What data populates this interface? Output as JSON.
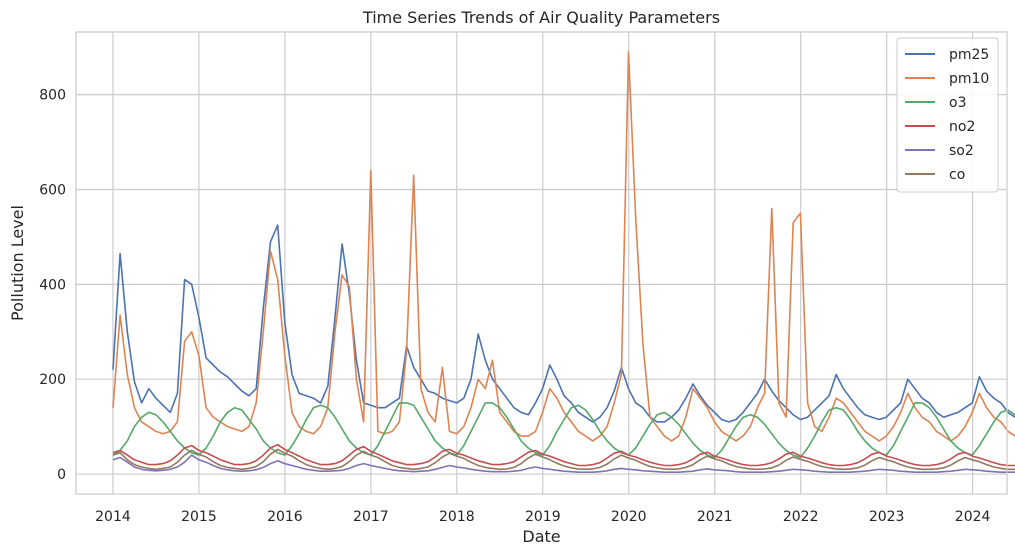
{
  "chart_data": {
    "type": "line",
    "title": "Time Series Trends of Air Quality Parameters",
    "xlabel": "Date",
    "ylabel": "Pollution Level",
    "xlim": [
      2013.57,
      2024.4
    ],
    "ylim": [
      -42,
      932
    ],
    "x_ticks": [
      2014,
      2015,
      2016,
      2017,
      2018,
      2019,
      2020,
      2021,
      2022,
      2023,
      2024
    ],
    "x_tick_labels": [
      "2014",
      "2015",
      "2016",
      "2017",
      "2018",
      "2019",
      "2020",
      "2021",
      "2022",
      "2023",
      "2024"
    ],
    "y_ticks": [
      0,
      200,
      400,
      600,
      800
    ],
    "y_tick_labels": [
      "0",
      "200",
      "400",
      "600",
      "800"
    ],
    "grid": true,
    "legend_position": "top-right",
    "x_step": 0.0833,
    "series": [
      {
        "name": "pm25",
        "color": "#4c72b0",
        "x_start": 2014.0,
        "values": [
          220,
          465,
          300,
          195,
          150,
          180,
          160,
          145,
          130,
          170,
          410,
          400,
          330,
          245,
          230,
          215,
          205,
          190,
          175,
          165,
          180,
          350,
          490,
          525,
          320,
          210,
          170,
          165,
          160,
          150,
          185,
          330,
          485,
          380,
          240,
          150,
          145,
          140,
          140,
          150,
          160,
          270,
          225,
          200,
          175,
          170,
          160,
          155,
          150,
          160,
          200,
          295,
          240,
          200,
          180,
          160,
          140,
          130,
          125,
          150,
          180,
          230,
          200,
          165,
          150,
          130,
          120,
          110,
          120,
          140,
          175,
          225,
          180,
          150,
          140,
          120,
          110,
          110,
          120,
          135,
          160,
          190,
          165,
          145,
          130,
          115,
          110,
          115,
          130,
          150,
          170,
          200,
          175,
          155,
          140,
          125,
          115,
          120,
          135,
          150,
          165,
          210,
          180,
          160,
          140,
          125,
          120,
          115,
          120,
          135,
          150,
          200,
          180,
          160,
          150,
          130,
          120,
          125,
          130,
          140,
          150,
          205,
          175,
          160,
          150,
          130,
          120,
          125,
          130,
          140,
          155,
          210
        ]
      },
      {
        "name": "pm10",
        "color": "#dd8452",
        "x_start": 2014.0,
        "values": [
          140,
          335,
          210,
          140,
          110,
          100,
          90,
          85,
          90,
          110,
          280,
          300,
          250,
          140,
          120,
          110,
          100,
          95,
          90,
          100,
          150,
          300,
          470,
          410,
          250,
          130,
          100,
          90,
          85,
          100,
          140,
          300,
          420,
          395,
          200,
          110,
          640,
          90,
          85,
          90,
          110,
          260,
          630,
          180,
          130,
          110,
          225,
          90,
          85,
          100,
          140,
          200,
          180,
          240,
          130,
          110,
          90,
          80,
          80,
          90,
          130,
          180,
          160,
          130,
          110,
          90,
          80,
          70,
          80,
          100,
          150,
          210,
          890,
          540,
          275,
          120,
          100,
          80,
          70,
          80,
          120,
          180,
          160,
          140,
          110,
          90,
          80,
          70,
          80,
          100,
          140,
          170,
          560,
          150,
          120,
          530,
          550,
          150,
          100,
          90,
          120,
          160,
          150,
          130,
          110,
          90,
          80,
          70,
          80,
          100,
          130,
          170,
          140,
          120,
          110,
          90,
          80,
          70,
          80,
          100,
          130,
          170,
          140,
          120,
          110,
          90,
          80,
          70,
          80,
          100,
          130,
          150
        ]
      },
      {
        "name": "o3",
        "color": "#55a868",
        "x_start": 2014.0,
        "values": [
          40,
          50,
          70,
          100,
          120,
          130,
          125,
          110,
          90,
          70,
          55,
          45,
          40,
          55,
          80,
          110,
          130,
          140,
          135,
          115,
          95,
          70,
          55,
          45,
          40,
          60,
          85,
          115,
          140,
          145,
          140,
          120,
          95,
          70,
          55,
          45,
          40,
          60,
          90,
          120,
          150,
          150,
          145,
          120,
          95,
          70,
          55,
          45,
          40,
          60,
          90,
          120,
          150,
          150,
          140,
          120,
          95,
          70,
          55,
          45,
          40,
          60,
          90,
          115,
          140,
          145,
          135,
          115,
          90,
          70,
          55,
          45,
          40,
          55,
          80,
          105,
          125,
          130,
          120,
          105,
          85,
          65,
          50,
          40,
          35,
          50,
          75,
          100,
          120,
          125,
          120,
          105,
          85,
          65,
          50,
          40,
          35,
          55,
          80,
          110,
          135,
          140,
          135,
          115,
          90,
          70,
          55,
          45,
          40,
          60,
          90,
          120,
          150,
          150,
          140,
          120,
          95,
          70,
          55,
          45,
          40,
          60,
          85,
          110,
          130,
          135,
          125,
          110,
          90,
          70,
          55,
          45
        ]
      },
      {
        "name": "no2",
        "color": "#c44e52",
        "x_start": 2014.0,
        "values": [
          45,
          50,
          40,
          30,
          25,
          20,
          20,
          22,
          28,
          40,
          55,
          60,
          50,
          45,
          38,
          30,
          25,
          20,
          20,
          22,
          28,
          40,
          55,
          62,
          52,
          45,
          38,
          30,
          25,
          20,
          20,
          22,
          28,
          40,
          52,
          58,
          48,
          42,
          35,
          28,
          24,
          20,
          20,
          22,
          26,
          36,
          48,
          52,
          44,
          40,
          34,
          28,
          24,
          20,
          20,
          22,
          26,
          36,
          46,
          50,
          42,
          38,
          32,
          26,
          22,
          18,
          18,
          20,
          24,
          34,
          44,
          48,
          40,
          36,
          30,
          25,
          21,
          18,
          18,
          20,
          24,
          32,
          42,
          46,
          38,
          34,
          29,
          24,
          20,
          18,
          18,
          20,
          24,
          32,
          42,
          46,
          38,
          34,
          29,
          24,
          20,
          18,
          18,
          20,
          24,
          32,
          42,
          46,
          38,
          34,
          29,
          24,
          20,
          18,
          18,
          20,
          24,
          32,
          42,
          46,
          38,
          34,
          29,
          24,
          20,
          18,
          18,
          20,
          24,
          32,
          40,
          44
        ]
      },
      {
        "name": "so2",
        "color": "#8172b3",
        "x_start": 2014.0,
        "values": [
          30,
          35,
          25,
          15,
          10,
          8,
          7,
          8,
          10,
          15,
          25,
          40,
          30,
          25,
          18,
          12,
          9,
          7,
          6,
          7,
          9,
          14,
          22,
          28,
          22,
          18,
          14,
          10,
          8,
          6,
          6,
          7,
          8,
          12,
          18,
          22,
          18,
          15,
          12,
          9,
          7,
          6,
          5,
          6,
          7,
          10,
          14,
          18,
          15,
          13,
          10,
          8,
          6,
          5,
          5,
          5,
          6,
          8,
          12,
          15,
          12,
          10,
          8,
          6,
          5,
          4,
          4,
          4,
          5,
          7,
          10,
          12,
          10,
          9,
          7,
          6,
          5,
          4,
          4,
          4,
          5,
          6,
          9,
          11,
          9,
          8,
          7,
          5,
          4,
          4,
          4,
          4,
          5,
          6,
          8,
          10,
          9,
          8,
          6,
          5,
          4,
          4,
          4,
          4,
          5,
          6,
          8,
          10,
          9,
          8,
          6,
          5,
          4,
          4,
          4,
          4,
          5,
          6,
          8,
          10,
          9,
          8,
          6,
          5,
          4,
          4,
          4,
          4,
          5,
          6,
          8,
          9
        ]
      },
      {
        "name": "co",
        "color": "#937860",
        "x_start": 2014.0,
        "values": [
          40,
          45,
          30,
          20,
          15,
          12,
          10,
          12,
          15,
          25,
          40,
          50,
          42,
          36,
          26,
          18,
          14,
          12,
          10,
          12,
          16,
          26,
          42,
          52,
          44,
          38,
          28,
          20,
          15,
          12,
          10,
          12,
          16,
          26,
          40,
          48,
          40,
          35,
          26,
          18,
          14,
          12,
          10,
          12,
          15,
          24,
          36,
          44,
          38,
          33,
          25,
          18,
          14,
          12,
          10,
          11,
          14,
          22,
          34,
          42,
          36,
          30,
          23,
          17,
          13,
          11,
          10,
          11,
          14,
          21,
          32,
          40,
          34,
          29,
          22,
          16,
          13,
          11,
          10,
          11,
          14,
          20,
          30,
          38,
          32,
          28,
          21,
          16,
          13,
          11,
          10,
          11,
          13,
          19,
          29,
          36,
          31,
          27,
          21,
          16,
          13,
          11,
          10,
          11,
          13,
          19,
          28,
          35,
          30,
          26,
          20,
          15,
          12,
          10,
          10,
          11,
          13,
          19,
          28,
          35,
          30,
          26,
          20,
          15,
          12,
          10,
          10,
          11,
          13,
          19,
          27,
          33
        ]
      }
    ]
  }
}
